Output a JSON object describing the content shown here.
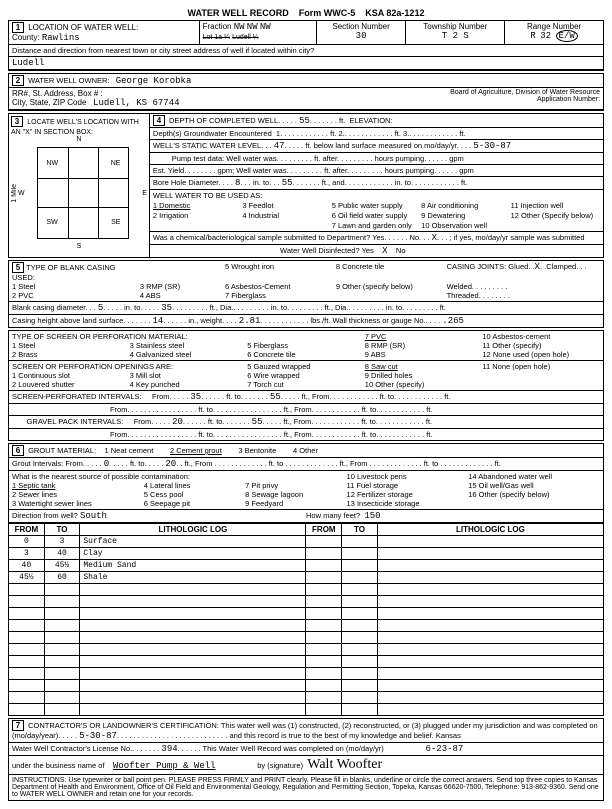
{
  "form": {
    "title": "WATER WELL RECORD",
    "form_no": "Form WWC-5",
    "ksa": "KSA 82a-1212"
  },
  "location": {
    "section_label": "LOCATION OF WATER WELL:",
    "county_label": "County:",
    "county": "Rawlins",
    "fraction_label": "Fraction",
    "fraction1": "NW",
    "fraction2": "NW",
    "fraction3": "NW",
    "lot_label": "Lot 1a ¼",
    "lot2_label": "Ludell ¼",
    "section_num_label": "Section Number",
    "section_num": "30",
    "township_label": "Township Number",
    "township": "T    2    S",
    "range_label": "Range Number",
    "range_r": "R",
    "range_n": "32",
    "range_ew": "E/W",
    "direction_label": "Distance and direction from nearest town or city street address of well if located within city?",
    "direction_value": "Ludell"
  },
  "owner": {
    "label": "WATER WELL OWNER:",
    "name": "George Korobka",
    "addr_label": "RR#, St. Address, Box # :",
    "city_label": "City, State, ZIP Code",
    "city": "Ludell, KS  67744",
    "board": "Board of Agriculture, Division of Water Resource",
    "app_label": "Application Number:"
  },
  "locate": {
    "label": "LOCATE WELL'S LOCATION WITH AN \"X\" IN SECTION BOX:",
    "n": "N",
    "s": "S",
    "e": "E",
    "w": "W",
    "nw": "NW",
    "ne": "NE",
    "sw": "SW",
    "se": "SE",
    "mile": "1 Mile"
  },
  "depth": {
    "label": "DEPTH OF COMPLETED WELL",
    "value": "55",
    "ft": "ft.",
    "elev_label": "ELEVATION:",
    "gw_label": "Depth(s) Groundwater Encountered",
    "gw1": "1",
    "gw2": "ft. 2.",
    "gw3": "ft. 3.",
    "gw4": "ft.",
    "static_label": "WELL'S STATIC WATER LEVEL",
    "static": "47",
    "static_tail": "ft. below land surface measured on mo/day/yr",
    "static_date": "5-30-87",
    "pump_label": "Pump test data:  Well water was",
    "pump_after": "ft. after",
    "pump_hours": "hours pumping",
    "gpm": "gpm",
    "est_label": "Est. Yield",
    "est_after": "gpm;  Well water was",
    "bore_label": "Bore Hole Diameter",
    "bore1": "8",
    "bore_to": "in. to",
    "bore2": "55",
    "bore_tail": "ft., and",
    "bore_in": "in. to",
    "bore_ft": "ft.",
    "use_label": "WELL WATER TO BE USED AS:",
    "uses": [
      "1 Domestic",
      "3 Feedlot",
      "5 Public water supply",
      "8 Air conditioning",
      "11 Injection well",
      "2 Irrigation",
      "4 Industrial",
      "6 Oil field water supply",
      "9 Dewatering",
      "12 Other (Specify below)",
      "",
      "",
      "7 Lawn and garden only",
      "10 Observation well",
      ""
    ],
    "chem_label": "Was a chemical/bacteriological sample submitted to Department?  Yes",
    "chem_no": "No",
    "chem_x": "X",
    "chem_tail": "if yes, mo/day/yr sample was submitted",
    "disinfect_label": "Water Well Disinfected?  Yes",
    "disinfect_x": "X",
    "disinfect_no": "No"
  },
  "casing": {
    "label": "TYPE OF BLANK CASING USED:",
    "opts": [
      "1 Steel",
      "3 RMP (SR)",
      "5 Wrought iron",
      "8 Concrete tile",
      "2 PVC",
      "4 ABS",
      "6 Asbestos-Cement",
      "9 Other (specify below)",
      "",
      "",
      "7 Fiberglass",
      ""
    ],
    "joints_label": "CASING JOINTS: Glued",
    "joints_x": "X",
    "joints_clamped": "Clamped",
    "welded": "Welded",
    "threaded": "Threaded",
    "diam_label": "Blank casing diameter",
    "diam1": "5",
    "diam_to": "in. to",
    "diam2": "35",
    "diam_tail1": "ft., Dia.",
    "diam_in": "in. to",
    "diam_ft": "ft., Dia.",
    "diam_in2": "in. to",
    "diam_ft2": "ft.",
    "height_label": "Casing height above land surface",
    "height": "14",
    "weight_label": "in., weight",
    "weight": "2.81",
    "weight_tail": "lbs./ft. Wall thickness or gauge No.",
    "gauge": ".265"
  },
  "screen": {
    "label": "TYPE OF SCREEN OR PERFORATION MATERIAL:",
    "opts": [
      "1 Steel",
      "3 Stainless steel",
      "5 Fiberglass",
      "8 RMP (SR)",
      "11 Other (specify)",
      "2 Brass",
      "4 Galvanized steel",
      "6 Concrete tile",
      "9 ABS",
      "12 None used (open hole)"
    ],
    "sel": "7 PVC",
    "sel2": "10 Asbestos-cement",
    "open_label": "SCREEN OR PERFORATION OPENINGS ARE:",
    "open_opts": [
      "1 Continuous slot",
      "3 Mill slot",
      "5 Gauzed wrapped",
      "9 Drilled holes",
      "11 None (open hole)",
      "2 Louvered shutter",
      "4 Key punched",
      "6 Wire wrapped",
      "10 Other (specify)",
      "",
      "",
      "",
      "7 Torch cut",
      "",
      ""
    ],
    "open_sel": "8 Saw cut",
    "perf_label": "SCREEN-PERFORATED INTERVALS:",
    "from": "From",
    "to": "ft. to",
    "fromv1": "35",
    "tov1": "55",
    "tail": "ft., From",
    "tail2": "ft. to",
    "tail3": "ft.",
    "grav_label": "GRAVEL PACK INTERVALS:",
    "gfrom": "20",
    "gto": "55"
  },
  "grout": {
    "label": "GROUT MATERIAL:",
    "opts": [
      "1 Neat cement",
      "3 Bentonite",
      "4 Other"
    ],
    "sel": "2 Cement grout",
    "int_label": "Grout Intervals:  From",
    "int_from": "0",
    "int_to": "ft. to",
    "int_tov": "20",
    "contam_label": "What is the nearest source of possible contamination:",
    "contam_opts": [
      "4 Lateral lines",
      "7 Pit privy",
      "10 Livestock pens",
      "14 Abandoned water well",
      "2 Sewer lines",
      "5 Cess pool",
      "8 Sewage lagoon",
      "12 Fertilizer storage",
      "15 Oil well/Gas well",
      "3 Watertight sewer lines",
      "6 Seepage pit",
      "9 Feedyard",
      "11 Fuel storage",
      "16 Other (specify below)",
      "",
      "",
      "",
      "13 Insecticide storage",
      ""
    ],
    "contam_sel": "1 Septic tank",
    "dir_label": "Direction from well?",
    "dir": "South",
    "feet_label": "How many feet?",
    "feet": "150"
  },
  "litho": {
    "headers": [
      "FROM",
      "TO",
      "LITHOLOGIC LOG",
      "FROM",
      "TO",
      "LITHOLOGIC LOG"
    ],
    "rows": [
      [
        "0",
        "3",
        "Surface",
        "",
        "",
        ""
      ],
      [
        "3",
        "40",
        "Clay",
        "",
        "",
        ""
      ],
      [
        "40",
        "45½",
        "Medium Sand",
        "",
        "",
        ""
      ],
      [
        "45½",
        "60",
        "Shale",
        "",
        "",
        ""
      ],
      [
        "",
        "",
        "",
        "",
        "",
        ""
      ],
      [
        "",
        "",
        "",
        "",
        "",
        ""
      ],
      [
        "",
        "",
        "",
        "",
        "",
        ""
      ],
      [
        "",
        "",
        "",
        "",
        "",
        ""
      ],
      [
        "",
        "",
        "",
        "",
        "",
        ""
      ],
      [
        "",
        "",
        "",
        "",
        "",
        ""
      ],
      [
        "",
        "",
        "",
        "",
        "",
        ""
      ],
      [
        "",
        "",
        "",
        "",
        "",
        ""
      ],
      [
        "",
        "",
        "",
        "",
        "",
        ""
      ],
      [
        "",
        "",
        "",
        "",
        "",
        ""
      ],
      [
        "",
        "",
        "",
        "",
        "",
        ""
      ]
    ]
  },
  "cert": {
    "label": "CONTRACTOR'S OR LANDOWNER'S CERTIFICATION: This water well was (1) constructed, (2) reconstructed, or (3) plugged under my jurisdiction and was completed on (mo/day/year)",
    "date1": "5-30-87",
    "tail1": "and this record is true to the best of my knowledge and belief. Kansas",
    "lic_label": "Water Well Contractor's License No.",
    "lic": "394",
    "lic_tail": "This Water Well Record was completed on (mo/day/yr)",
    "date2": "6-23-87",
    "biz_label": "under the business name of",
    "biz": "Woofter Pump & Well",
    "sig_label": "by (signature)",
    "sig": "Walt Woofter",
    "instr": "INSTRUCTIONS: Use typewriter or ball point pen. PLEASE PRESS FIRMLY and PRINT clearly. Please fill in blanks, underline or circle the correct answers. Send top three copies to Kansas Department of Health and Environment, Office of Oil Field and Environmental Geology, Regulation and Permitting Section, Topeka, Kansas 66620-7500, Telephone: 913-862-9360. Send one to WATER WELL OWNER and retain one for your records."
  }
}
